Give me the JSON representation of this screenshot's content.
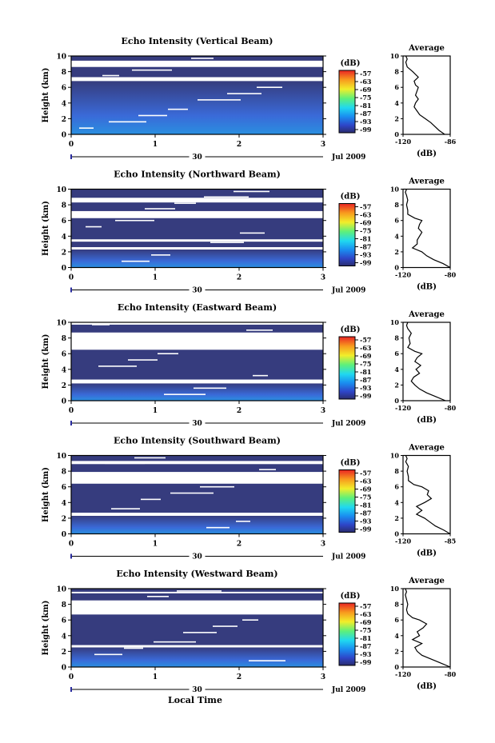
{
  "figure": {
    "xlabel": "Local Time"
  },
  "chart_data": [
    {
      "type": "heatmap",
      "title": "Echo Intensity (Vertical Beam)",
      "ylabel": "Height (km)",
      "xlim": [
        0,
        3
      ],
      "ylim": [
        0,
        10
      ],
      "xticks": [
        "0",
        "1",
        "2",
        "3"
      ],
      "yticks": [
        "0",
        "2",
        "4",
        "6",
        "8",
        "10"
      ],
      "date_day": "30",
      "date_month_year": "Jul 2009",
      "colorbar": {
        "unit": "(dB)",
        "ticks": [
          "-57",
          "-63",
          "-69",
          "-75",
          "-81",
          "-87",
          "-93",
          "-99"
        ]
      },
      "echo_layers_km": [
        [
          0,
          6.8
        ],
        [
          7.3,
          8.6
        ],
        [
          9.4,
          10
        ]
      ],
      "average_profile": {
        "title": "Average",
        "xlabel": "(dB)",
        "xticks": [
          "-120",
          "-86"
        ],
        "xlim": [
          -120,
          -86
        ],
        "ylim": [
          0,
          10
        ],
        "yticks": [
          "0",
          "2",
          "4",
          "6",
          "8",
          "10"
        ],
        "x": [
          -90,
          -94,
          -97,
          -100,
          -104,
          -108,
          -110,
          -112,
          -111,
          -109,
          -111,
          -110,
          -109,
          -111,
          -112,
          -109,
          -113,
          -117,
          -118,
          -117,
          -118
        ],
        "y": [
          0,
          0.5,
          1,
          1.5,
          2,
          2.5,
          3,
          3.5,
          4,
          4.5,
          5,
          5.5,
          6,
          6.3,
          6.8,
          7.3,
          8,
          8.6,
          9.2,
          9.6,
          10
        ]
      }
    },
    {
      "type": "heatmap",
      "title": "Echo Intensity (Northward Beam)",
      "ylabel": "Height (km)",
      "xlim": [
        0,
        3
      ],
      "ylim": [
        0,
        10
      ],
      "xticks": [
        "0",
        "1",
        "2",
        "3"
      ],
      "yticks": [
        "0",
        "2",
        "4",
        "6",
        "8",
        "10"
      ],
      "date_day": "30",
      "date_month_year": "Jul 2009",
      "colorbar": {
        "unit": "(dB)",
        "ticks": [
          "-57",
          "-63",
          "-69",
          "-75",
          "-81",
          "-87",
          "-93",
          "-99"
        ]
      },
      "echo_layers_km": [
        [
          0,
          2.3
        ],
        [
          2.6,
          3.3
        ],
        [
          3.6,
          6.3
        ],
        [
          7.2,
          8.3
        ],
        [
          8.9,
          10
        ]
      ],
      "average_profile": {
        "title": "Average",
        "xlabel": "(dB)",
        "xticks": [
          "-120",
          "-80"
        ],
        "xlim": [
          -120,
          -80
        ],
        "ylim": [
          0,
          10
        ],
        "yticks": [
          "0",
          "2",
          "4",
          "6",
          "8",
          "10"
        ],
        "x": [
          -80,
          -86,
          -94,
          -100,
          -104,
          -112,
          -108,
          -108,
          -106,
          -104,
          -107,
          -106,
          -104,
          -110,
          -116,
          -116,
          -117,
          -116,
          -117,
          -118,
          -117
        ],
        "y": [
          0,
          0.5,
          1,
          1.5,
          2,
          2.5,
          3,
          3.5,
          4,
          4.5,
          5,
          5.5,
          6,
          6.3,
          6.8,
          7.3,
          8,
          8.6,
          9.2,
          9.6,
          10
        ]
      }
    },
    {
      "type": "heatmap",
      "title": "Echo Intensity (Eastward Beam)",
      "ylabel": "Height (km)",
      "xlim": [
        0,
        3
      ],
      "ylim": [
        0,
        10
      ],
      "xticks": [
        "0",
        "1",
        "2",
        "3"
      ],
      "yticks": [
        "0",
        "2",
        "4",
        "6",
        "8",
        "10"
      ],
      "date_day": "30",
      "date_month_year": "Jul 2009",
      "colorbar": {
        "unit": "(dB)",
        "ticks": [
          "-57",
          "-63",
          "-69",
          "-75",
          "-81",
          "-87",
          "-93",
          "-99"
        ]
      },
      "echo_layers_km": [
        [
          0,
          2.2
        ],
        [
          2.7,
          6.5
        ],
        [
          8.7,
          9.7
        ]
      ],
      "average_profile": {
        "title": "Average",
        "xlabel": "(dB)",
        "xticks": [
          "-120",
          "-80"
        ],
        "xlim": [
          -120,
          -80
        ],
        "ylim": [
          0,
          10
        ],
        "yticks": [
          "0",
          "2",
          "4",
          "6",
          "8",
          "10"
        ],
        "x": [
          -84,
          -92,
          -100,
          -106,
          -110,
          -113,
          -111,
          -106,
          -109,
          -105,
          -110,
          -108,
          -104,
          -110,
          -116,
          -114,
          -115,
          -113,
          -116,
          -117,
          -116
        ],
        "y": [
          0,
          0.5,
          1,
          1.5,
          2,
          2.5,
          3,
          3.5,
          4,
          4.5,
          5,
          5.5,
          6,
          6.3,
          6.8,
          7.3,
          8,
          8.6,
          9.2,
          9.6,
          10
        ]
      }
    },
    {
      "type": "heatmap",
      "title": "Echo Intensity (Southward Beam)",
      "ylabel": "Height (km)",
      "xlim": [
        0,
        3
      ],
      "ylim": [
        0,
        10
      ],
      "xticks": [
        "0",
        "1",
        "2",
        "3"
      ],
      "yticks": [
        "0",
        "2",
        "4",
        "6",
        "8",
        "10"
      ],
      "date_day": "30",
      "date_month_year": "Jul 2009",
      "colorbar": {
        "unit": "(dB)",
        "ticks": [
          "-57",
          "-63",
          "-69",
          "-75",
          "-81",
          "-87",
          "-93",
          "-99"
        ]
      },
      "echo_layers_km": [
        [
          0,
          2.3
        ],
        [
          2.7,
          6.4
        ],
        [
          7.9,
          8.9
        ],
        [
          9.3,
          10
        ]
      ],
      "average_profile": {
        "title": "Average",
        "xlabel": "(dB)",
        "xticks": [
          "-120",
          "-85"
        ],
        "xlim": [
          -120,
          -85
        ],
        "ylim": [
          0,
          10
        ],
        "yticks": [
          "0",
          "2",
          "4",
          "6",
          "8",
          "10"
        ],
        "x": [
          -85,
          -90,
          -96,
          -100,
          -104,
          -110,
          -106,
          -110,
          -104,
          -99,
          -102,
          -101,
          -106,
          -112,
          -116,
          -116,
          -117,
          -116,
          -118,
          -117,
          -118
        ],
        "y": [
          0,
          0.5,
          1,
          1.5,
          2,
          2.5,
          3,
          3.5,
          4,
          4.5,
          5,
          5.5,
          6,
          6.3,
          6.8,
          7.3,
          8,
          8.6,
          9.2,
          9.6,
          10
        ]
      }
    },
    {
      "type": "heatmap",
      "title": "Echo Intensity (Westward Beam)",
      "ylabel": "Height (km)",
      "xlim": [
        0,
        3
      ],
      "ylim": [
        0,
        10
      ],
      "xticks": [
        "0",
        "1",
        "2",
        "3"
      ],
      "yticks": [
        "0",
        "2",
        "4",
        "6",
        "8",
        "10"
      ],
      "date_day": "30",
      "date_month_year": "Jul 2009",
      "colorbar": {
        "unit": "(dB)",
        "ticks": [
          "-57",
          "-63",
          "-69",
          "-75",
          "-81",
          "-87",
          "-93",
          "-99"
        ]
      },
      "echo_layers_km": [
        [
          0,
          2.5
        ],
        [
          2.8,
          6.7
        ],
        [
          8.5,
          9.4
        ],
        [
          9.6,
          10
        ]
      ],
      "average_profile": {
        "title": "Average",
        "xlabel": "(dB)",
        "xticks": [
          "-120",
          "-80"
        ],
        "xlim": [
          -120,
          -80
        ],
        "ylim": [
          0,
          10
        ],
        "yticks": [
          "0",
          "2",
          "4",
          "6",
          "8",
          "10"
        ],
        "x": [
          -80,
          -88,
          -96,
          -104,
          -108,
          -110,
          -104,
          -112,
          -106,
          -108,
          -103,
          -100,
          -106,
          -112,
          -116,
          -117,
          -116,
          -117,
          -118,
          -117,
          -118
        ],
        "y": [
          0,
          0.5,
          1,
          1.5,
          2,
          2.5,
          3,
          3.5,
          4,
          4.5,
          5,
          5.5,
          6,
          6.3,
          6.8,
          7.3,
          8,
          8.6,
          9.2,
          9.6,
          10
        ]
      }
    }
  ]
}
